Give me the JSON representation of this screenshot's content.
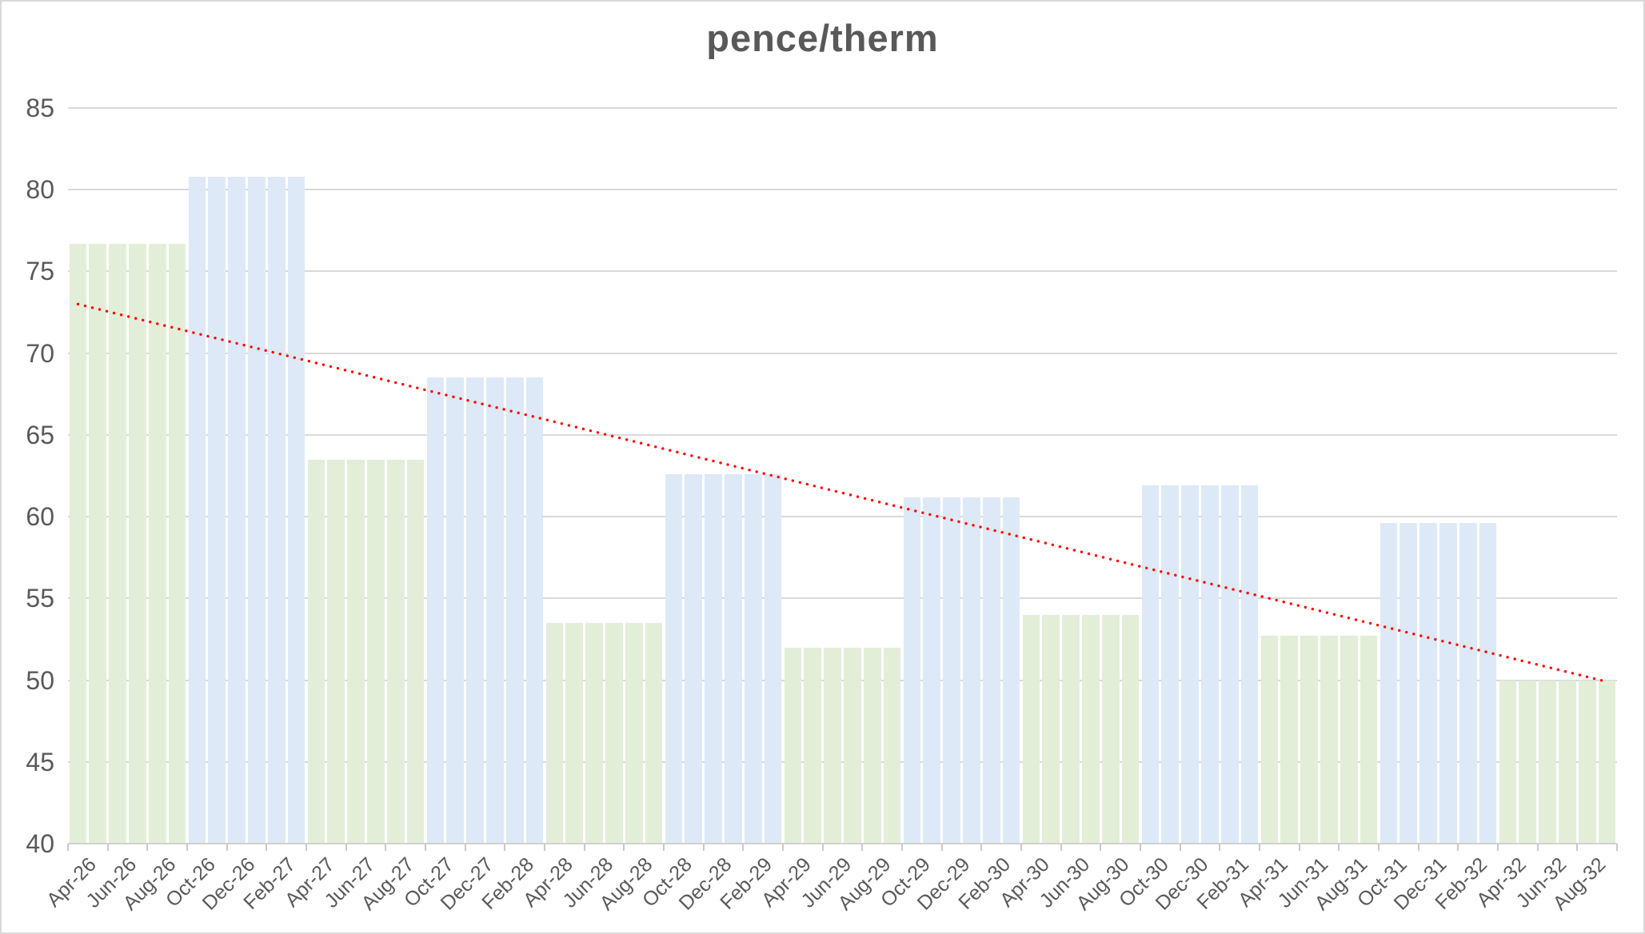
{
  "chart_data": {
    "type": "bar",
    "title": "pence/therm",
    "grid": "horizontal",
    "legend": "none",
    "y_axis": {
      "min": 40,
      "max": 85,
      "step": 5
    },
    "y_ticks": [
      85,
      80,
      75,
      70,
      65,
      60,
      55,
      50,
      45,
      40
    ],
    "x_tick_labels": [
      "Apr-26",
      "Jun-26",
      "Aug-26",
      "Oct-26",
      "Dec-26",
      "Feb-27",
      "Apr-27",
      "Jun-27",
      "Aug-27",
      "Oct-27",
      "Dec-27",
      "Feb-28",
      "Apr-28",
      "Jun-28",
      "Aug-28",
      "Oct-28",
      "Dec-28",
      "Feb-29",
      "Apr-29",
      "Jun-29",
      "Aug-29",
      "Oct-29",
      "Dec-29",
      "Feb-30",
      "Apr-30",
      "Jun-30",
      "Aug-30",
      "Oct-30",
      "Dec-30",
      "Feb-31",
      "Apr-31",
      "Jun-31",
      "Aug-31",
      "Oct-31",
      "Dec-31",
      "Feb-32",
      "Apr-32",
      "Jun-32",
      "Aug-32"
    ],
    "bars_per_x_label": 2,
    "seasonal_blocks": [
      {
        "season": "summer",
        "first_month": "Apr-26",
        "months": 6,
        "value": 76.7
      },
      {
        "season": "winter",
        "first_month": "Oct-26",
        "months": 6,
        "value": 80.8
      },
      {
        "season": "summer",
        "first_month": "Apr-27",
        "months": 6,
        "value": 63.5
      },
      {
        "season": "winter",
        "first_month": "Oct-27",
        "months": 6,
        "value": 68.5
      },
      {
        "season": "summer",
        "first_month": "Apr-28",
        "months": 6,
        "value": 53.5
      },
      {
        "season": "winter",
        "first_month": "Oct-28",
        "months": 6,
        "value": 62.6
      },
      {
        "season": "summer",
        "first_month": "Apr-29",
        "months": 6,
        "value": 52.0
      },
      {
        "season": "winter",
        "first_month": "Oct-29",
        "months": 6,
        "value": 61.2
      },
      {
        "season": "summer",
        "first_month": "Apr-30",
        "months": 6,
        "value": 54.0
      },
      {
        "season": "winter",
        "first_month": "Oct-30",
        "months": 6,
        "value": 61.9
      },
      {
        "season": "summer",
        "first_month": "Apr-31",
        "months": 6,
        "value": 52.7
      },
      {
        "season": "winter",
        "first_month": "Oct-31",
        "months": 6,
        "value": 59.6
      },
      {
        "season": "summer",
        "first_month": "Apr-32",
        "months": 6,
        "value": 50.0
      }
    ],
    "trend_line": {
      "style": "dotted",
      "start_value": 73.0,
      "end_value": 49.9
    },
    "colors": {
      "summer_bar": "#e3eed8",
      "winter_bar": "#dde9f6",
      "trend": "#ff0000",
      "gridline": "#d9d9d9",
      "axis_line": "#d0d0d0",
      "tick": "#c9c9c9",
      "text": "#595959",
      "border": "#d9d9d9"
    }
  }
}
